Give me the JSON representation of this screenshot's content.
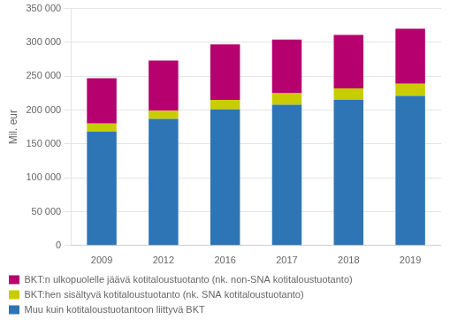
{
  "chart_data": {
    "type": "bar",
    "stacked": true,
    "categories": [
      "2009",
      "2012",
      "2016",
      "2017",
      "2018",
      "2019"
    ],
    "series": [
      {
        "name": "Muu kuin kotitaloustuotantoon liittyvä BKT",
        "color": "#2e75b6",
        "values": [
          168000,
          187000,
          201000,
          208000,
          215000,
          221000
        ]
      },
      {
        "name": "BKT:hen sisältyvä kotitaloustuotanto (nk. SNA kotitaloustuotanto)",
        "color": "#c8cc00",
        "values": [
          12000,
          12000,
          14000,
          17000,
          17000,
          18000
        ]
      },
      {
        "name": "BKT:n ulkopuolelle jäävä kotitaloustuotanto (nk. non-SNA kotitaloustuotanto)",
        "color": "#b5006e",
        "values": [
          67000,
          74000,
          82000,
          79000,
          79000,
          81000
        ]
      }
    ],
    "ylabel": "Mil. eur",
    "ylim": [
      0,
      350000
    ],
    "yticks": [
      0,
      {
        "value": 50000,
        "label": "50 000"
      },
      {
        "value": 100000,
        "label": "100 000"
      },
      {
        "value": 150000,
        "label": "150 000"
      },
      {
        "value": 200000,
        "label": "200 000"
      },
      {
        "value": 250000,
        "label": "250 000"
      },
      {
        "value": 300000,
        "label": "300 000"
      },
      {
        "value": 350000,
        "label": "350 000"
      }
    ],
    "grid": true,
    "legend": "bottom"
  }
}
